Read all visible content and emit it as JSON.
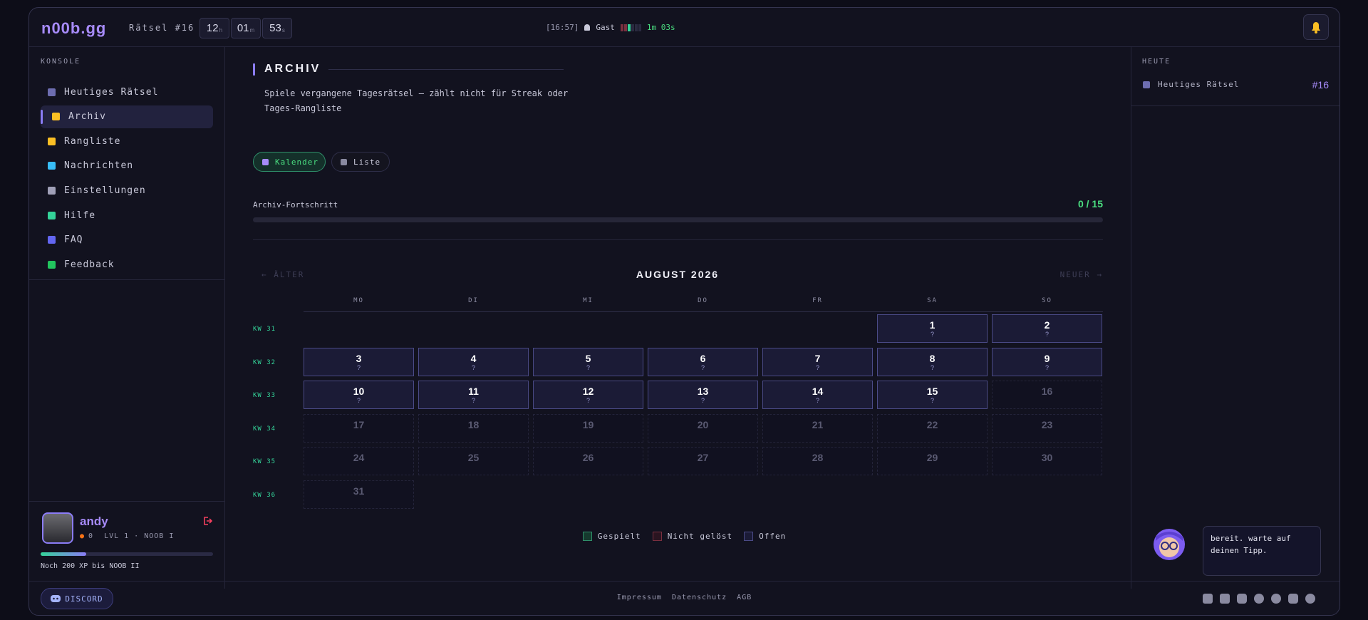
{
  "header": {
    "logo": "n00b.gg",
    "puzzle": "Rätsel #16",
    "timer": [
      {
        "value": "12",
        "unit": "h"
      },
      {
        "value": "01",
        "unit": "m"
      },
      {
        "value": "53",
        "unit": "s"
      }
    ],
    "clock": "[16:57]",
    "user": "Gast",
    "elapsed": "1m 03s"
  },
  "sidebar": {
    "section": "KONSOLE",
    "nav": [
      {
        "label": "Heutiges Rätsel",
        "active": false
      },
      {
        "label": "Archiv",
        "active": true
      },
      {
        "label": "Rangliste",
        "active": false
      },
      {
        "label": "Nachrichten",
        "active": false
      },
      {
        "label": "Einstellungen",
        "active": false
      },
      {
        "label": "Hilfe",
        "active": false
      },
      {
        "label": "FAQ",
        "active": false
      },
      {
        "label": "Feedback",
        "active": false
      }
    ],
    "user": {
      "name": "andy",
      "streak": "0",
      "level": "LVL 1 · NOOB I",
      "xp_note": "Noch 200 XP bis NOOB II"
    }
  },
  "main": {
    "title": "ARCHIV",
    "description": "Spiele vergangene Tagesrätsel — zählt nicht für Streak oder Tages-Rangliste",
    "tabs": [
      {
        "label": "Kalender",
        "active": true
      },
      {
        "label": "Liste",
        "active": false
      }
    ],
    "progress": {
      "label": "Archiv-Fortschritt",
      "value": "0 / 15"
    },
    "calendar": {
      "prev": "← ÄLTER",
      "month": "AUGUST 2026",
      "next": "NEUER →",
      "weekdays": [
        "MO",
        "DI",
        "MI",
        "DO",
        "FR",
        "SA",
        "SO"
      ],
      "weeks": [
        {
          "label": "KW 31",
          "days": [
            null,
            null,
            null,
            null,
            null,
            {
              "day": 1,
              "status": "open",
              "mark": "?"
            },
            {
              "day": 2,
              "status": "open",
              "mark": "?"
            }
          ]
        },
        {
          "label": "KW 32",
          "days": [
            {
              "day": 3,
              "status": "open",
              "mark": "?"
            },
            {
              "day": 4,
              "status": "open",
              "mark": "?"
            },
            {
              "day": 5,
              "status": "open",
              "mark": "?"
            },
            {
              "day": 6,
              "status": "open",
              "mark": "?"
            },
            {
              "day": 7,
              "status": "open",
              "mark": "?"
            },
            {
              "day": 8,
              "status": "open",
              "mark": "?"
            },
            {
              "day": 9,
              "status": "open",
              "mark": "?"
            }
          ]
        },
        {
          "label": "KW 33",
          "days": [
            {
              "day": 10,
              "status": "open",
              "mark": "?"
            },
            {
              "day": 11,
              "status": "open",
              "mark": "?"
            },
            {
              "day": 12,
              "status": "open",
              "mark": "?"
            },
            {
              "day": 13,
              "status": "open",
              "mark": "?"
            },
            {
              "day": 14,
              "status": "open",
              "mark": "?"
            },
            {
              "day": 15,
              "status": "open",
              "mark": "?"
            },
            {
              "day": 16,
              "status": "future"
            }
          ]
        },
        {
          "label": "KW 34",
          "days": [
            {
              "day": 17,
              "status": "future"
            },
            {
              "day": 18,
              "status": "future"
            },
            {
              "day": 19,
              "status": "future"
            },
            {
              "day": 20,
              "status": "future"
            },
            {
              "day": 21,
              "status": "future"
            },
            {
              "day": 22,
              "status": "future"
            },
            {
              "day": 23,
              "status": "future"
            }
          ]
        },
        {
          "label": "KW 35",
          "days": [
            {
              "day": 24,
              "status": "future"
            },
            {
              "day": 25,
              "status": "future"
            },
            {
              "day": 26,
              "status": "future"
            },
            {
              "day": 27,
              "status": "future"
            },
            {
              "day": 28,
              "status": "future"
            },
            {
              "day": 29,
              "status": "future"
            },
            {
              "day": 30,
              "status": "future"
            }
          ]
        },
        {
          "label": "KW 36",
          "days": [
            {
              "day": 31,
              "status": "future"
            },
            null,
            null,
            null,
            null,
            null,
            null
          ]
        }
      ]
    },
    "legend": [
      "Gespielt",
      "Nicht gelöst",
      "Offen"
    ]
  },
  "right": {
    "section": "HEUTE",
    "item": "Heutiges Rätsel",
    "number": "#16",
    "bot": "bereit. warte auf deinen Tipp."
  },
  "footer": {
    "discord": "DISCORD",
    "links": [
      "Impressum",
      "Datenschutz",
      "AGB"
    ]
  }
}
